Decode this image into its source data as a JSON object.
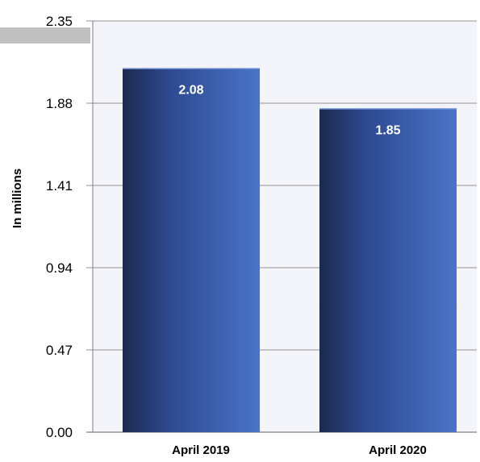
{
  "chart_data": {
    "type": "bar",
    "categories": [
      "April 2019",
      "April 2020"
    ],
    "values": [
      2.08,
      1.85
    ],
    "data_labels": [
      "2.08",
      "1.85"
    ],
    "yticks": [
      "0.00",
      "0.47",
      "0.94",
      "1.41",
      "1.88",
      "2.35"
    ],
    "ylim": [
      0,
      2.35
    ],
    "ylabel": "In millions",
    "xlabel": "",
    "title": "",
    "grid": true,
    "colors": {
      "bar_dark": "#1b2a4e",
      "bar_mid": "#2e4a92",
      "bar_light": "#4a74c8",
      "plot_bg": "#f4f5fb",
      "grid": "#a6a6a6",
      "top_band": "#c0c0c0"
    }
  }
}
